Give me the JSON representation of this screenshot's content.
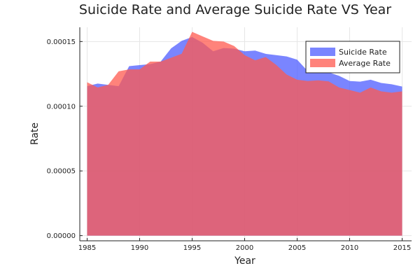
{
  "chart_data": {
    "type": "area",
    "title": "Suicide Rate and Average Suicide Rate VS Year",
    "xlabel": "Year",
    "ylabel": "Rate",
    "xlim": [
      1984.3,
      2015.9
    ],
    "ylim": [
      -4e-06,
      0.000161
    ],
    "xticks": [
      1985,
      1990,
      1995,
      2000,
      2005,
      2010,
      2015
    ],
    "xtick_labels": [
      "1985",
      "1990",
      "1995",
      "2000",
      "2005",
      "2010",
      "2015"
    ],
    "yticks": [
      0,
      5e-05,
      0.0001,
      0.00015
    ],
    "ytick_labels": [
      "0.00000",
      "0.00005",
      "0.00010",
      "0.00015"
    ],
    "grid": true,
    "legend_position": "top-right",
    "x": [
      1985,
      1986,
      1987,
      1988,
      1989,
      1990,
      1991,
      1992,
      1993,
      1994,
      1995,
      1996,
      1997,
      1998,
      1999,
      2000,
      2001,
      2002,
      2003,
      2004,
      2005,
      2006,
      2007,
      2008,
      2009,
      2010,
      2011,
      2012,
      2013,
      2014,
      2015
    ],
    "series": [
      {
        "name": "Suicide Rate",
        "color": "#4d5cff",
        "opacity": 0.75,
        "values": [
          0.0001155,
          0.0001175,
          0.0001165,
          0.0001155,
          0.000131,
          0.0001318,
          0.0001325,
          0.0001345,
          0.0001448,
          0.0001505,
          0.0001535,
          0.000149,
          0.0001425,
          0.000145,
          0.0001445,
          0.0001425,
          0.000143,
          0.0001405,
          0.0001395,
          0.0001385,
          0.000136,
          0.0001272,
          0.0001275,
          0.0001262,
          0.0001235,
          0.0001195,
          0.000119,
          0.0001205,
          0.000118,
          0.000117,
          0.0001152
        ]
      },
      {
        "name": "Average Rate",
        "color": "#ff5a4f",
        "opacity": 0.75,
        "values": [
          0.0001185,
          0.0001145,
          0.0001165,
          0.000127,
          0.0001285,
          0.0001285,
          0.0001345,
          0.0001345,
          0.0001375,
          0.0001405,
          0.0001575,
          0.000154,
          0.0001505,
          0.00015,
          0.0001465,
          0.0001395,
          0.0001355,
          0.000138,
          0.000132,
          0.0001245,
          0.0001205,
          0.0001195,
          0.00012,
          0.0001192,
          0.0001145,
          0.0001125,
          0.0001105,
          0.0001145,
          0.0001115,
          0.0001105,
          0.0001115
        ]
      }
    ]
  }
}
